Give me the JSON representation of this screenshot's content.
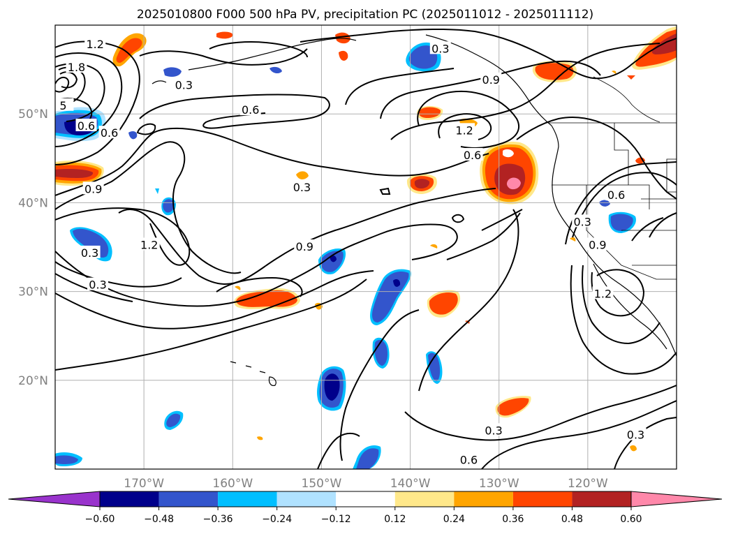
{
  "title": "2025010800 F000 500 hPa PV, precipitation PC (2025011012 - 2025011112)",
  "map": {
    "lon_range": [
      -180,
      -110
    ],
    "lat_range": [
      10,
      60
    ],
    "lat_ticks": [
      {
        "value": 20,
        "label": "20°N"
      },
      {
        "value": 30,
        "label": "30°N"
      },
      {
        "value": 40,
        "label": "40°N"
      },
      {
        "value": 50,
        "label": "50°N"
      }
    ],
    "lon_ticks": [
      {
        "value": -170,
        "label": "170°W"
      },
      {
        "value": -160,
        "label": "160°W"
      },
      {
        "value": -150,
        "label": "150°W"
      },
      {
        "value": -140,
        "label": "140°W"
      },
      {
        "value": -130,
        "label": "130°W"
      },
      {
        "value": -120,
        "label": "120°W"
      }
    ],
    "grid": true
  },
  "colorbar": {
    "levels": [
      "−0.60",
      "−0.48",
      "−0.36",
      "−0.24",
      "−0.12",
      "0.12",
      "0.24",
      "0.36",
      "0.48",
      "0.60"
    ],
    "colors": [
      "#9933cc",
      "#00008b",
      "#3355cc",
      "#00bfff",
      "#b0e2ff",
      "#ffffff",
      "#ffe88a",
      "#ffa500",
      "#ff4500",
      "#b22222",
      "#ff88aa"
    ],
    "extend": "both"
  },
  "contour_labels": [
    {
      "text": "1.2",
      "lon": -175.5,
      "lat": 57.8
    },
    {
      "text": "1.8",
      "lon": -177.6,
      "lat": 55.2
    },
    {
      "text": "0.3",
      "lon": -165.5,
      "lat": 53.2
    },
    {
      "text": "5",
      "lon": -179.1,
      "lat": 50.9
    },
    {
      "text": "0.6",
      "lon": -176.5,
      "lat": 48.6
    },
    {
      "text": "0.6",
      "lon": -173.9,
      "lat": 47.8
    },
    {
      "text": "0.6",
      "lon": -158.0,
      "lat": 50.4
    },
    {
      "text": "0.9",
      "lon": -175.7,
      "lat": 41.5
    },
    {
      "text": "0.3",
      "lon": -152.2,
      "lat": 41.7
    },
    {
      "text": "1.2",
      "lon": -169.4,
      "lat": 35.2
    },
    {
      "text": "0.9",
      "lon": -151.9,
      "lat": 35.0
    },
    {
      "text": "0.3",
      "lon": -176.1,
      "lat": 34.3
    },
    {
      "text": "0.3",
      "lon": -175.2,
      "lat": 30.7
    },
    {
      "text": "0.3",
      "lon": -136.6,
      "lat": 57.3
    },
    {
      "text": "0.9",
      "lon": -130.9,
      "lat": 53.8
    },
    {
      "text": "1.2",
      "lon": -133.9,
      "lat": 48.1
    },
    {
      "text": "0.6",
      "lon": -133.0,
      "lat": 45.3
    },
    {
      "text": "0.6",
      "lon": -116.8,
      "lat": 40.8
    },
    {
      "text": "0.3",
      "lon": -120.6,
      "lat": 37.8
    },
    {
      "text": "0.9",
      "lon": -118.9,
      "lat": 35.2
    },
    {
      "text": "1.2",
      "lon": -118.3,
      "lat": 29.7
    },
    {
      "text": "0.3",
      "lon": -130.6,
      "lat": 14.3
    },
    {
      "text": "0.6",
      "lon": -133.4,
      "lat": 11.0
    },
    {
      "text": "0.3",
      "lon": -114.6,
      "lat": 13.8
    }
  ]
}
